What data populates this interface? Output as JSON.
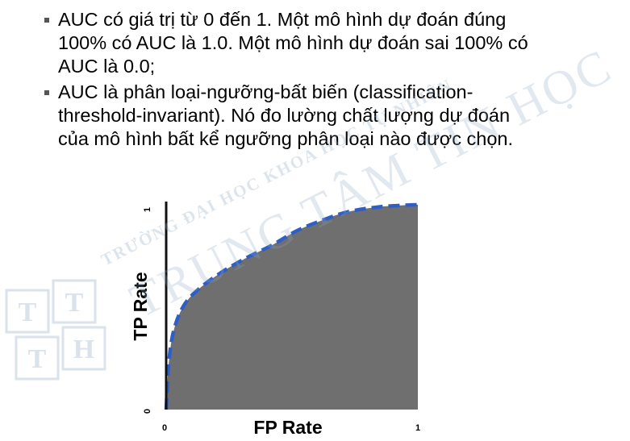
{
  "bullets": [
    {
      "text": "AUC có giá trị từ 0 đến 1. Một mô hình dự đoán đúng\n100% có AUC là 1.0. Một mô hình dự đoán sai 100% có\nAUC là 0.0;"
    },
    {
      "text": "AUC là phân loại-ngưỡng-bất biến (classification-\nthreshold-invariant). Nó đo lường chất lượng dự đoán\ncủa mô hình bất kể ngưỡng phân loại nào được chọn."
    }
  ],
  "chart_data": {
    "type": "area",
    "xlabel": "FP Rate",
    "ylabel": "TP Rate",
    "xlim": [
      0,
      1
    ],
    "ylim": [
      0,
      1
    ],
    "x_ticks": [
      "0",
      "1"
    ],
    "y_ticks": [
      "0",
      "1"
    ],
    "x": [
      0,
      0.01,
      0.03,
      0.07,
      0.13,
      0.22,
      0.32,
      0.42,
      0.52,
      0.62,
      0.72,
      0.85,
      1.0
    ],
    "y": [
      0,
      0.22,
      0.38,
      0.5,
      0.58,
      0.66,
      0.73,
      0.79,
      0.86,
      0.91,
      0.95,
      0.975,
      0.985
    ],
    "fill_color": "#6f6f6f",
    "curve_color": "#2f5fc4",
    "grid": false
  },
  "watermark": {
    "logo_letters": [
      "T",
      "T",
      "T",
      "H"
    ],
    "arc_text": "TRƯỜNG ĐẠI HỌC KHOA HỌC TỰ NHIÊN",
    "main_text": "TRUNG TÂM TIN HỌC",
    "color": "#8fa8c4"
  }
}
